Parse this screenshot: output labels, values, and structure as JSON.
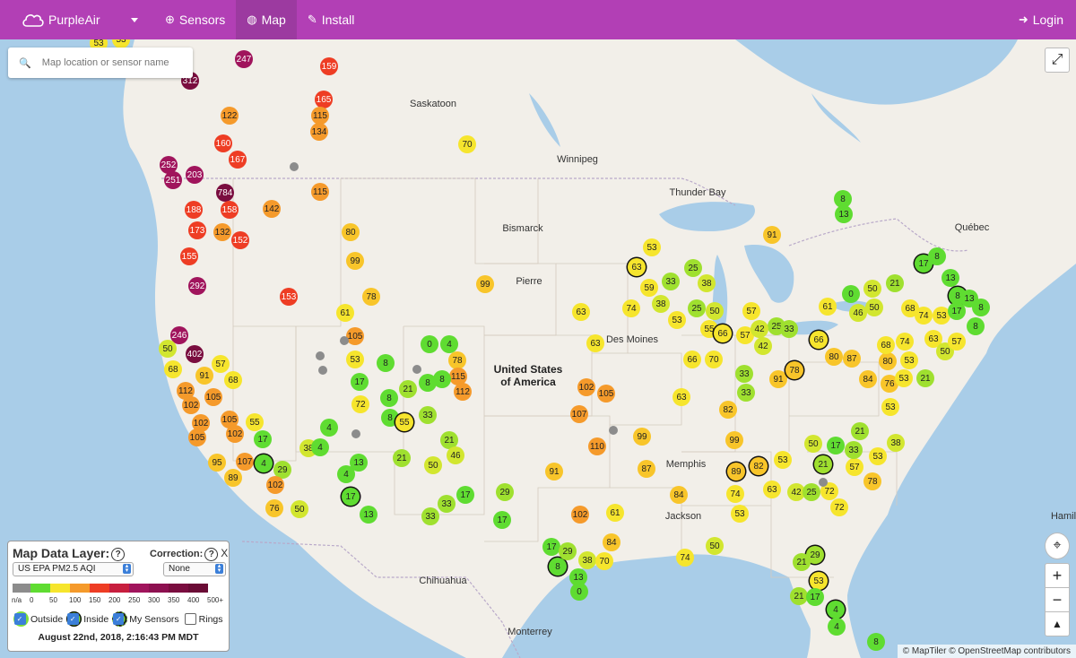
{
  "nav": {
    "brand": "PurpleAir",
    "items": [
      {
        "label": "Sensors",
        "icon": "plus-circle-icon"
      },
      {
        "label": "Map",
        "icon": "globe-icon",
        "active": true
      },
      {
        "label": "Install",
        "icon": "wrench-icon"
      }
    ],
    "login": "Login"
  },
  "search": {
    "placeholder": "Map location or sensor name"
  },
  "colors": {
    "nav_bg": "#b23fb5",
    "water": "#a9cde8",
    "land": "#f2efe9",
    "good": "#5fdc31",
    "moderate": "#f6e52d",
    "usg": "#f59a2b",
    "unhealthy": "#ee3d24",
    "very_unhealthy": "#a0145c",
    "hazardous": "#7a0d3f",
    "no_data": "#8c8c8c"
  },
  "map": {
    "cities": [
      "Saskatoon",
      "Winnipeg",
      "Thunder Bay",
      "Bismarck",
      "Pierre",
      "Québec",
      "Des Moines",
      "Memphis",
      "Jackson",
      "Chihuahua",
      "Monterrey",
      "Hamil"
    ],
    "country_label": "United States of America",
    "attribution": "© MapTiler © OpenStreetMap contributors"
  },
  "sensors": [
    [
      "53",
      110,
      48
    ],
    [
      "53",
      135,
      44
    ],
    [
      "247",
      272,
      66
    ],
    [
      "312",
      212,
      90
    ],
    [
      "159",
      367,
      74
    ],
    [
      "165",
      361,
      111
    ],
    [
      "115",
      357,
      129
    ],
    [
      "134",
      356,
      147
    ],
    [
      "122",
      256,
      129
    ],
    [
      "160",
      249,
      160
    ],
    [
      "167",
      265,
      178
    ],
    [
      "252",
      188,
      184
    ],
    [
      "203",
      217,
      195
    ],
    [
      "251",
      193,
      201
    ],
    [
      "784",
      251,
      215
    ],
    [
      "188",
      216,
      234
    ],
    [
      "158",
      256,
      234
    ],
    [
      "142",
      303,
      233
    ],
    [
      "115",
      357,
      214
    ],
    [
      "173",
      220,
      257
    ],
    [
      "132",
      248,
      259
    ],
    [
      "152",
      268,
      268
    ],
    [
      "70",
      521,
      161
    ],
    [
      "80",
      391,
      259
    ],
    [
      "99",
      396,
      291
    ],
    [
      "155",
      211,
      286
    ],
    [
      "292",
      220,
      319
    ],
    [
      "153",
      322,
      331
    ],
    [
      "99",
      541,
      317
    ],
    [
      "78",
      414,
      331
    ],
    [
      "61",
      385,
      349
    ],
    [
      "246",
      200,
      374
    ],
    [
      "402",
      217,
      395
    ],
    [
      "50",
      187,
      389
    ],
    [
      "68",
      193,
      412
    ],
    [
      "91",
      228,
      419
    ],
    [
      "57",
      246,
      406
    ],
    [
      "68",
      260,
      424
    ],
    [
      "112",
      207,
      436
    ],
    [
      "105",
      238,
      443
    ],
    [
      "102",
      213,
      452
    ],
    [
      "102",
      224,
      472
    ],
    [
      "105",
      256,
      468
    ],
    [
      "55",
      284,
      471
    ],
    [
      "105",
      220,
      488
    ],
    [
      "102",
      262,
      484
    ],
    [
      "17",
      293,
      490
    ],
    [
      "95",
      242,
      516
    ],
    [
      "107",
      273,
      515
    ],
    [
      "4",
      294,
      517
    ],
    [
      "29",
      315,
      524
    ],
    [
      "89",
      260,
      533
    ],
    [
      "102",
      307,
      541
    ],
    [
      "76",
      306,
      567
    ],
    [
      "50",
      334,
      568
    ],
    [
      "105",
      396,
      375
    ],
    [
      "53",
      396,
      401
    ],
    [
      "8",
      430,
      405
    ],
    [
      "17",
      401,
      426
    ],
    [
      "0",
      479,
      384
    ],
    [
      "4",
      501,
      384
    ],
    [
      "78",
      510,
      402
    ],
    [
      "115",
      511,
      420
    ],
    [
      "112",
      516,
      437
    ],
    [
      "8",
      493,
      423
    ],
    [
      "8",
      477,
      427
    ],
    [
      "21",
      455,
      434
    ],
    [
      "8",
      434,
      444
    ],
    [
      "72",
      402,
      451
    ],
    [
      "8",
      435,
      466
    ],
    [
      "55",
      451,
      471
    ],
    [
      "33",
      477,
      463
    ],
    [
      "4",
      367,
      477
    ],
    [
      "38",
      344,
      500
    ],
    [
      "4",
      357,
      499
    ],
    [
      "13",
      400,
      516
    ],
    [
      "21",
      448,
      511
    ],
    [
      "21",
      501,
      491
    ],
    [
      "46",
      508,
      508
    ],
    [
      "50",
      483,
      519
    ],
    [
      "4",
      386,
      529
    ],
    [
      "17",
      391,
      554
    ],
    [
      "13",
      411,
      574
    ],
    [
      "33",
      498,
      562
    ],
    [
      "17",
      519,
      552
    ],
    [
      "33",
      480,
      576
    ],
    [
      "29",
      563,
      549
    ],
    [
      "17",
      560,
      580
    ],
    [
      "102",
      647,
      574
    ],
    [
      "61",
      686,
      572
    ],
    [
      "63",
      648,
      348
    ],
    [
      "63",
      664,
      383
    ],
    [
      "102",
      654,
      432
    ],
    [
      "105",
      676,
      439
    ],
    [
      "107",
      646,
      462
    ],
    [
      "110",
      666,
      498
    ],
    [
      "99",
      716,
      487
    ],
    [
      "91",
      618,
      526
    ],
    [
      "87",
      721,
      523
    ],
    [
      "84",
      757,
      552
    ],
    [
      "74",
      820,
      551
    ],
    [
      "53",
      825,
      573
    ],
    [
      "89",
      821,
      526
    ],
    [
      "82",
      846,
      520
    ],
    [
      "63",
      861,
      546
    ],
    [
      "42",
      888,
      549
    ],
    [
      "25",
      905,
      549
    ],
    [
      "72",
      925,
      548
    ],
    [
      "72",
      936,
      566
    ],
    [
      "78",
      973,
      537
    ],
    [
      "57",
      953,
      521
    ],
    [
      "53",
      979,
      509
    ],
    [
      "33",
      952,
      502
    ],
    [
      "17",
      932,
      497
    ],
    [
      "50",
      907,
      495
    ],
    [
      "38",
      999,
      494
    ],
    [
      "21",
      959,
      481
    ],
    [
      "53",
      873,
      513
    ],
    [
      "21",
      918,
      518
    ],
    [
      "99",
      819,
      491
    ],
    [
      "82",
      812,
      457
    ],
    [
      "63",
      760,
      443
    ],
    [
      "33",
      832,
      438
    ],
    [
      "33",
      830,
      417
    ],
    [
      "91",
      868,
      423
    ],
    [
      "78",
      886,
      413
    ],
    [
      "66",
      772,
      401
    ],
    [
      "70",
      796,
      401
    ],
    [
      "55",
      791,
      367
    ],
    [
      "66",
      806,
      372
    ],
    [
      "57",
      831,
      374
    ],
    [
      "42",
      851,
      386
    ],
    [
      "25",
      866,
      364
    ],
    [
      "33",
      880,
      367
    ],
    [
      "42",
      847,
      367
    ],
    [
      "66",
      913,
      379
    ],
    [
      "80",
      930,
      398
    ],
    [
      "87",
      950,
      400
    ],
    [
      "80",
      990,
      403
    ],
    [
      "84",
      968,
      423
    ],
    [
      "76",
      992,
      428
    ],
    [
      "53",
      1008,
      422
    ],
    [
      "53",
      993,
      454
    ],
    [
      "21",
      1032,
      422
    ],
    [
      "53",
      1014,
      402
    ],
    [
      "68",
      988,
      385
    ],
    [
      "74",
      1009,
      381
    ],
    [
      "63",
      1041,
      378
    ],
    [
      "50",
      1054,
      392
    ],
    [
      "57",
      1067,
      381
    ],
    [
      "53",
      1050,
      352
    ],
    [
      "68",
      1015,
      344
    ],
    [
      "74",
      1030,
      352
    ],
    [
      "46",
      957,
      349
    ],
    [
      "61",
      923,
      342
    ],
    [
      "0",
      949,
      328
    ],
    [
      "50",
      973,
      322
    ],
    [
      "21",
      998,
      316
    ],
    [
      "50",
      975,
      343
    ],
    [
      "17",
      1030,
      294
    ],
    [
      "8",
      1045,
      286
    ],
    [
      "13",
      1060,
      310
    ],
    [
      "8",
      1068,
      330
    ],
    [
      "13",
      1081,
      333
    ],
    [
      "17",
      1067,
      347
    ],
    [
      "8",
      1094,
      343
    ],
    [
      "8",
      1088,
      364
    ],
    [
      "8",
      940,
      222
    ],
    [
      "13",
      941,
      239
    ],
    [
      "91",
      861,
      262
    ],
    [
      "53",
      727,
      276
    ],
    [
      "63",
      710,
      298
    ],
    [
      "25",
      773,
      299
    ],
    [
      "59",
      724,
      321
    ],
    [
      "33",
      748,
      314
    ],
    [
      "38",
      788,
      316
    ],
    [
      "38",
      737,
      339
    ],
    [
      "74",
      704,
      344
    ],
    [
      "25",
      777,
      344
    ],
    [
      "50",
      797,
      347
    ],
    [
      "53",
      755,
      357
    ],
    [
      "57",
      838,
      347
    ],
    [
      "17",
      615,
      610
    ],
    [
      "8",
      622,
      632
    ],
    [
      "29",
      633,
      615
    ],
    [
      "38",
      655,
      625
    ],
    [
      "70",
      674,
      626
    ],
    [
      "84",
      682,
      605
    ],
    [
      "13",
      645,
      644
    ],
    [
      "0",
      646,
      660
    ],
    [
      "50",
      797,
      609
    ],
    [
      "74",
      764,
      622
    ],
    [
      "29",
      909,
      619
    ],
    [
      "21",
      894,
      627
    ],
    [
      "53",
      913,
      648
    ],
    [
      "21",
      891,
      665
    ],
    [
      "17",
      909,
      666
    ],
    [
      "4",
      932,
      680
    ],
    [
      "4",
      933,
      699
    ],
    [
      "8",
      977,
      716
    ]
  ]
}
